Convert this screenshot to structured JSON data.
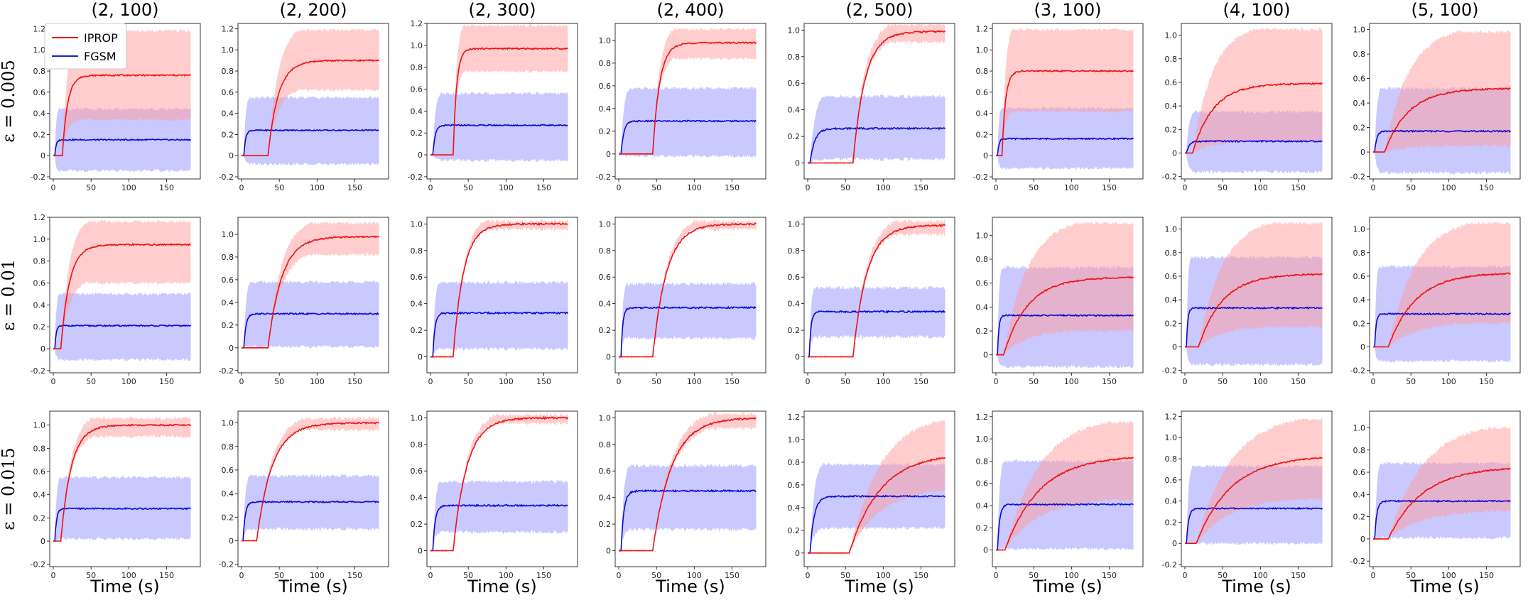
{
  "figure": {
    "col_titles": [
      "(2, 100)",
      "(2, 200)",
      "(2, 300)",
      "(2, 400)",
      "(2, 500)",
      "(3, 100)",
      "(4, 100)",
      "(5, 100)"
    ],
    "row_labels": [
      "ε = 0.005",
      "ε = 0.01",
      "ε = 0.015"
    ],
    "xlabel": "Time (s)",
    "legend": [
      {
        "label": "IPROP",
        "color": "#e31a1c"
      },
      {
        "label": "FGSM",
        "color": "#1f1fcc"
      }
    ],
    "colors": {
      "iprop_line": "#ee1111",
      "iprop_band": "#ff9c9c",
      "fgsm_line": "#0a0ad0",
      "fgsm_band": "#9c9cff"
    }
  },
  "chart_data": {
    "type": "line",
    "x_range": [
      0,
      180
    ],
    "x_ticks": [
      0,
      50,
      100,
      150
    ],
    "panels": [
      {
        "row": 0,
        "col": 0,
        "ylim": [
          -0.22,
          1.25
        ],
        "yticks": [
          -0.2,
          0,
          0.2,
          0.4,
          0.6,
          0.8,
          1.0,
          1.2
        ],
        "iprop": {
          "onset": 12,
          "rise": 15,
          "final": 0.76
        },
        "fgsm": {
          "onset": 2,
          "rise": 4,
          "final": 0.15
        },
        "iprop_band": {
          "upper": 1.18,
          "lower": 0.34
        },
        "fgsm_band": {
          "upper": 0.44,
          "lower": -0.14
        }
      },
      {
        "row": 0,
        "col": 1,
        "ylim": [
          -0.22,
          1.25
        ],
        "yticks": [
          -0.2,
          0,
          0.2,
          0.4,
          0.6,
          0.8,
          1.0,
          1.2
        ],
        "iprop": {
          "onset": 35,
          "rise": 30,
          "final": 0.9
        },
        "fgsm": {
          "onset": 3,
          "rise": 5,
          "final": 0.24
        },
        "iprop_band": {
          "upper": 1.19,
          "lower": 0.62
        },
        "fgsm_band": {
          "upper": 0.55,
          "lower": -0.08
        }
      },
      {
        "row": 0,
        "col": 2,
        "ylim": [
          -0.22,
          1.2
        ],
        "yticks": [
          -0.2,
          0,
          0.2,
          0.4,
          0.6,
          0.8,
          1.0,
          1.2
        ],
        "iprop": {
          "onset": 30,
          "rise": 10,
          "final": 0.97
        },
        "fgsm": {
          "onset": 3,
          "rise": 7,
          "final": 0.27
        },
        "iprop_band": {
          "upper": 1.18,
          "lower": 0.76
        },
        "fgsm_band": {
          "upper": 0.56,
          "lower": -0.05
        }
      },
      {
        "row": 0,
        "col": 3,
        "ylim": [
          -0.22,
          1.15
        ],
        "yticks": [
          -0.2,
          0,
          0.2,
          0.4,
          0.6,
          0.8,
          1.0
        ],
        "iprop": {
          "onset": 45,
          "rise": 20,
          "final": 0.98
        },
        "fgsm": {
          "onset": 3,
          "rise": 8,
          "final": 0.29
        },
        "iprop_band": {
          "upper": 1.1,
          "lower": 0.84
        },
        "fgsm_band": {
          "upper": 0.58,
          "lower": -0.02
        }
      },
      {
        "row": 0,
        "col": 4,
        "ylim": [
          -0.12,
          1.05
        ],
        "yticks": [
          0,
          0.2,
          0.4,
          0.6,
          0.8,
          1.0
        ],
        "iprop": {
          "onset": 60,
          "rise": 35,
          "final": 0.99
        },
        "fgsm": {
          "onset": 3,
          "rise": 14,
          "final": 0.26
        },
        "iprop_band": {
          "upper": 1.04,
          "lower": 0.91
        },
        "fgsm_band": {
          "upper": 0.5,
          "lower": 0.03
        }
      },
      {
        "row": 0,
        "col": 5,
        "ylim": [
          -0.22,
          1.25
        ],
        "yticks": [
          -0.2,
          0,
          0.2,
          0.4,
          0.6,
          0.8,
          1.0,
          1.2
        ],
        "iprop": {
          "onset": 8,
          "rise": 10,
          "final": 0.8
        },
        "fgsm": {
          "onset": 2,
          "rise": 4,
          "final": 0.16
        },
        "iprop_band": {
          "upper": 1.19,
          "lower": 0.42
        },
        "fgsm_band": {
          "upper": 0.45,
          "lower": -0.12
        }
      },
      {
        "row": 0,
        "col": 6,
        "ylim": [
          -0.22,
          1.1
        ],
        "yticks": [
          -0.2,
          0,
          0.2,
          0.4,
          0.6,
          0.8,
          1.0
        ],
        "iprop": {
          "onset": 10,
          "rise": 60,
          "final": 0.59
        },
        "fgsm": {
          "onset": 2,
          "rise": 8,
          "final": 0.1
        },
        "iprop_band": {
          "upper": 1.05,
          "lower": 0.1
        },
        "fgsm_band": {
          "upper": 0.35,
          "lower": -0.16
        }
      },
      {
        "row": 0,
        "col": 7,
        "ylim": [
          -0.22,
          1.05
        ],
        "yticks": [
          -0.2,
          0,
          0.2,
          0.4,
          0.6,
          0.8,
          1.0
        ],
        "iprop": {
          "onset": 15,
          "rise": 70,
          "final": 0.52
        },
        "fgsm": {
          "onset": 2,
          "rise": 6,
          "final": 0.17
        },
        "iprop_band": {
          "upper": 0.98,
          "lower": 0.05
        },
        "fgsm_band": {
          "upper": 0.52,
          "lower": -0.17
        }
      },
      {
        "row": 1,
        "col": 0,
        "ylim": [
          -0.22,
          1.2
        ],
        "yticks": [
          -0.2,
          0,
          0.2,
          0.4,
          0.6,
          0.8,
          1.0,
          1.2
        ],
        "iprop": {
          "onset": 10,
          "rise": 25,
          "final": 0.95
        },
        "fgsm": {
          "onset": 2,
          "rise": 4,
          "final": 0.21
        },
        "iprop_band": {
          "upper": 1.16,
          "lower": 0.6
        },
        "fgsm_band": {
          "upper": 0.5,
          "lower": -0.1
        }
      },
      {
        "row": 1,
        "col": 1,
        "ylim": [
          -0.22,
          1.15
        ],
        "yticks": [
          -0.2,
          0,
          0.2,
          0.4,
          0.6,
          0.8,
          1.0
        ],
        "iprop": {
          "onset": 35,
          "rise": 40,
          "final": 0.98
        },
        "fgsm": {
          "onset": 3,
          "rise": 6,
          "final": 0.3
        },
        "iprop_band": {
          "upper": 1.1,
          "lower": 0.82
        },
        "fgsm_band": {
          "upper": 0.58,
          "lower": 0.01
        }
      },
      {
        "row": 1,
        "col": 2,
        "ylim": [
          -0.12,
          1.05
        ],
        "yticks": [
          0,
          0.2,
          0.4,
          0.6,
          0.8,
          1.0
        ],
        "iprop": {
          "onset": 30,
          "rise": 30,
          "final": 1.0
        },
        "fgsm": {
          "onset": 3,
          "rise": 6,
          "final": 0.33
        },
        "iprop_band": {
          "upper": 1.02,
          "lower": 0.96
        },
        "fgsm_band": {
          "upper": 0.56,
          "lower": 0.06
        }
      },
      {
        "row": 1,
        "col": 3,
        "ylim": [
          -0.12,
          1.05
        ],
        "yticks": [
          0,
          0.2,
          0.4,
          0.6,
          0.8,
          1.0
        ],
        "iprop": {
          "onset": 45,
          "rise": 40,
          "final": 1.0
        },
        "fgsm": {
          "onset": 3,
          "rise": 5,
          "final": 0.37
        },
        "iprop_band": {
          "upper": 1.02,
          "lower": 0.96
        },
        "fgsm_band": {
          "upper": 0.55,
          "lower": 0.14
        }
      },
      {
        "row": 1,
        "col": 4,
        "ylim": [
          -0.12,
          1.05
        ],
        "yticks": [
          0,
          0.2,
          0.4,
          0.6,
          0.8,
          1.0
        ],
        "iprop": {
          "onset": 60,
          "rise": 40,
          "final": 0.99
        },
        "fgsm": {
          "onset": 2,
          "rise": 5,
          "final": 0.34
        },
        "iprop_band": {
          "upper": 1.02,
          "lower": 0.92
        },
        "fgsm_band": {
          "upper": 0.52,
          "lower": 0.15
        }
      },
      {
        "row": 1,
        "col": 5,
        "ylim": [
          -0.15,
          1.15
        ],
        "yticks": [
          0,
          0.2,
          0.4,
          0.6,
          0.8,
          1.0
        ],
        "iprop": {
          "onset": 10,
          "rise": 70,
          "final": 0.65
        },
        "fgsm": {
          "onset": 2,
          "rise": 4,
          "final": 0.33
        },
        "iprop_band": {
          "upper": 1.1,
          "lower": 0.2
        },
        "fgsm_band": {
          "upper": 0.73,
          "lower": -0.1
        }
      },
      {
        "row": 1,
        "col": 6,
        "ylim": [
          -0.22,
          1.1
        ],
        "yticks": [
          -0.2,
          0,
          0.2,
          0.4,
          0.6,
          0.8,
          1.0
        ],
        "iprop": {
          "onset": 18,
          "rise": 70,
          "final": 0.62
        },
        "fgsm": {
          "onset": 2,
          "rise": 4,
          "final": 0.33
        },
        "iprop_band": {
          "upper": 1.05,
          "lower": 0.17
        },
        "fgsm_band": {
          "upper": 0.76,
          "lower": -0.15
        }
      },
      {
        "row": 1,
        "col": 7,
        "ylim": [
          -0.22,
          1.1
        ],
        "yticks": [
          -0.2,
          0,
          0.2,
          0.4,
          0.6,
          0.8,
          1.0
        ],
        "iprop": {
          "onset": 20,
          "rise": 80,
          "final": 0.63
        },
        "fgsm": {
          "onset": 2,
          "rise": 4,
          "final": 0.28
        },
        "iprop_band": {
          "upper": 1.05,
          "lower": 0.2
        },
        "fgsm_band": {
          "upper": 0.68,
          "lower": -0.12
        }
      },
      {
        "row": 2,
        "col": 0,
        "ylim": [
          -0.22,
          1.12
        ],
        "yticks": [
          -0.2,
          0,
          0.2,
          0.4,
          0.6,
          0.8,
          1.0
        ],
        "iprop": {
          "onset": 10,
          "rise": 30,
          "final": 1.0
        },
        "fgsm": {
          "onset": 2,
          "rise": 5,
          "final": 0.28
        },
        "iprop_band": {
          "upper": 1.06,
          "lower": 0.9
        },
        "fgsm_band": {
          "upper": 0.55,
          "lower": 0.02
        }
      },
      {
        "row": 2,
        "col": 1,
        "ylim": [
          -0.22,
          1.1
        ],
        "yticks": [
          -0.2,
          0,
          0.2,
          0.4,
          0.6,
          0.8,
          1.0
        ],
        "iprop": {
          "onset": 20,
          "rise": 45,
          "final": 1.0
        },
        "fgsm": {
          "onset": 2,
          "rise": 6,
          "final": 0.33
        },
        "iprop_band": {
          "upper": 1.04,
          "lower": 0.94
        },
        "fgsm_band": {
          "upper": 0.55,
          "lower": 0.1
        }
      },
      {
        "row": 2,
        "col": 2,
        "ylim": [
          -0.12,
          1.05
        ],
        "yticks": [
          0,
          0.2,
          0.4,
          0.6,
          0.8,
          1.0
        ],
        "iprop": {
          "onset": 30,
          "rise": 40,
          "final": 1.0
        },
        "fgsm": {
          "onset": 3,
          "rise": 7,
          "final": 0.34
        },
        "iprop_band": {
          "upper": 1.02,
          "lower": 0.96
        },
        "fgsm_band": {
          "upper": 0.52,
          "lower": 0.14
        }
      },
      {
        "row": 2,
        "col": 3,
        "ylim": [
          -0.12,
          1.05
        ],
        "yticks": [
          0,
          0.2,
          0.4,
          0.6,
          0.8,
          1.0
        ],
        "iprop": {
          "onset": 45,
          "rise": 55,
          "final": 1.0
        },
        "fgsm": {
          "onset": 3,
          "rise": 8,
          "final": 0.45
        },
        "iprop_band": {
          "upper": 1.03,
          "lower": 0.92
        },
        "fgsm_band": {
          "upper": 0.64,
          "lower": 0.16
        }
      },
      {
        "row": 2,
        "col": 4,
        "ylim": [
          -0.12,
          1.25
        ],
        "yticks": [
          0,
          0.2,
          0.4,
          0.6,
          0.8,
          1.0,
          1.2
        ],
        "iprop": {
          "onset": 55,
          "rise": 90,
          "final": 0.88
        },
        "fgsm": {
          "onset": 3,
          "rise": 12,
          "final": 0.5
        },
        "iprop_band": {
          "upper": 1.17,
          "lower": 0.55
        },
        "fgsm_band": {
          "upper": 0.78,
          "lower": 0.22
        }
      },
      {
        "row": 2,
        "col": 5,
        "ylim": [
          -0.15,
          1.25
        ],
        "yticks": [
          0,
          0.2,
          0.4,
          0.6,
          0.8,
          1.0,
          1.2
        ],
        "iprop": {
          "onset": 12,
          "rise": 100,
          "final": 0.85
        },
        "fgsm": {
          "onset": 2,
          "rise": 6,
          "final": 0.41
        },
        "iprop_band": {
          "upper": 1.15,
          "lower": 0.45
        },
        "fgsm_band": {
          "upper": 0.8,
          "lower": 0.01
        }
      },
      {
        "row": 2,
        "col": 6,
        "ylim": [
          -0.22,
          1.25
        ],
        "yticks": [
          -0.2,
          0,
          0.2,
          0.4,
          0.6,
          0.8,
          1.0,
          1.2
        ],
        "iprop": {
          "onset": 15,
          "rise": 100,
          "final": 0.83
        },
        "fgsm": {
          "onset": 2,
          "rise": 6,
          "final": 0.33
        },
        "iprop_band": {
          "upper": 1.17,
          "lower": 0.42
        },
        "fgsm_band": {
          "upper": 0.73,
          "lower": 0.0
        }
      },
      {
        "row": 2,
        "col": 7,
        "ylim": [
          -0.25,
          1.15
        ],
        "yticks": [
          -0.2,
          0,
          0.2,
          0.4,
          0.6,
          0.8,
          1.0
        ],
        "iprop": {
          "onset": 20,
          "rise": 100,
          "final": 0.65
        },
        "fgsm": {
          "onset": 2,
          "rise": 6,
          "final": 0.34
        },
        "iprop_band": {
          "upper": 1.0,
          "lower": 0.25
        },
        "fgsm_band": {
          "upper": 0.68,
          "lower": 0.01
        }
      }
    ]
  }
}
